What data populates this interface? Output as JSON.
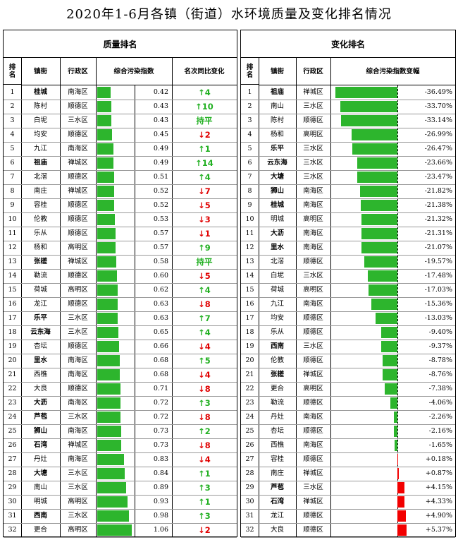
{
  "title": "2020年1-6月各镇（街道）水环境质量及变化排名情况",
  "colors": {
    "bar_green": "#2db52d",
    "bar_red": "#f20000",
    "up_text": "#22b022",
    "down_text": "#e00000"
  },
  "left": {
    "section_title": "质量排名",
    "headers": [
      "排名",
      "镇街",
      "行政区",
      "综合污染指数",
      "名次同比变化"
    ],
    "rows": [
      {
        "rank": "1",
        "town": "桂城",
        "bold": true,
        "district": "南海区",
        "index": 0.42,
        "index_text": "0.42",
        "change_text": "↑4",
        "dir": "up"
      },
      {
        "rank": "2",
        "town": "陈村",
        "bold": false,
        "district": "顺德区",
        "index": 0.43,
        "index_text": "0.43",
        "change_text": "↑10",
        "dir": "up"
      },
      {
        "rank": "3",
        "town": "白坭",
        "bold": false,
        "district": "三水区",
        "index": 0.43,
        "index_text": "0.43",
        "change_text": "持平",
        "dir": "flat"
      },
      {
        "rank": "4",
        "town": "均安",
        "bold": false,
        "district": "顺德区",
        "index": 0.45,
        "index_text": "0.45",
        "change_text": "↓2",
        "dir": "down"
      },
      {
        "rank": "5",
        "town": "九江",
        "bold": false,
        "district": "南海区",
        "index": 0.49,
        "index_text": "0.49",
        "change_text": "↑1",
        "dir": "up"
      },
      {
        "rank": "6",
        "town": "祖庙",
        "bold": true,
        "district": "禅城区",
        "index": 0.49,
        "index_text": "0.49",
        "change_text": "↑14",
        "dir": "up"
      },
      {
        "rank": "7",
        "town": "北滘",
        "bold": false,
        "district": "顺德区",
        "index": 0.51,
        "index_text": "0.51",
        "change_text": "↑4",
        "dir": "up"
      },
      {
        "rank": "8",
        "town": "南庄",
        "bold": false,
        "district": "禅城区",
        "index": 0.52,
        "index_text": "0.52",
        "change_text": "↓7",
        "dir": "down"
      },
      {
        "rank": "9",
        "town": "容桂",
        "bold": false,
        "district": "顺德区",
        "index": 0.52,
        "index_text": "0.52",
        "change_text": "↓5",
        "dir": "down"
      },
      {
        "rank": "10",
        "town": "伦教",
        "bold": false,
        "district": "顺德区",
        "index": 0.53,
        "index_text": "0.53",
        "change_text": "↓3",
        "dir": "down"
      },
      {
        "rank": "11",
        "town": "乐从",
        "bold": false,
        "district": "顺德区",
        "index": 0.57,
        "index_text": "0.57",
        "change_text": "↓1",
        "dir": "down"
      },
      {
        "rank": "12",
        "town": "杨和",
        "bold": false,
        "district": "高明区",
        "index": 0.57,
        "index_text": "0.57",
        "change_text": "↑9",
        "dir": "up"
      },
      {
        "rank": "13",
        "town": "张槎",
        "bold": true,
        "district": "禅城区",
        "index": 0.58,
        "index_text": "0.58",
        "change_text": "持平",
        "dir": "flat"
      },
      {
        "rank": "14",
        "town": "勒流",
        "bold": false,
        "district": "顺德区",
        "index": 0.6,
        "index_text": "0.60",
        "change_text": "↓5",
        "dir": "down"
      },
      {
        "rank": "15",
        "town": "荷城",
        "bold": false,
        "district": "高明区",
        "index": 0.62,
        "index_text": "0.62",
        "change_text": "↑4",
        "dir": "up"
      },
      {
        "rank": "16",
        "town": "龙江",
        "bold": false,
        "district": "顺德区",
        "index": 0.63,
        "index_text": "0.63",
        "change_text": "↓8",
        "dir": "down"
      },
      {
        "rank": "17",
        "town": "乐平",
        "bold": true,
        "district": "三水区",
        "index": 0.63,
        "index_text": "0.63",
        "change_text": "↑7",
        "dir": "up"
      },
      {
        "rank": "18",
        "town": "云东海",
        "bold": true,
        "district": "三水区",
        "index": 0.65,
        "index_text": "0.65",
        "change_text": "↑4",
        "dir": "up"
      },
      {
        "rank": "19",
        "town": "杏坛",
        "bold": false,
        "district": "顺德区",
        "index": 0.66,
        "index_text": "0.66",
        "change_text": "↓4",
        "dir": "down"
      },
      {
        "rank": "20",
        "town": "里水",
        "bold": true,
        "district": "南海区",
        "index": 0.68,
        "index_text": "0.68",
        "change_text": "↑5",
        "dir": "up"
      },
      {
        "rank": "21",
        "town": "西樵",
        "bold": false,
        "district": "南海区",
        "index": 0.68,
        "index_text": "0.68",
        "change_text": "↓4",
        "dir": "down"
      },
      {
        "rank": "22",
        "town": "大良",
        "bold": false,
        "district": "顺德区",
        "index": 0.71,
        "index_text": "0.71",
        "change_text": "↓8",
        "dir": "down"
      },
      {
        "rank": "23",
        "town": "大沥",
        "bold": true,
        "district": "南海区",
        "index": 0.72,
        "index_text": "0.72",
        "change_text": "↑3",
        "dir": "up"
      },
      {
        "rank": "24",
        "town": "芦苞",
        "bold": true,
        "district": "三水区",
        "index": 0.72,
        "index_text": "0.72",
        "change_text": "↓8",
        "dir": "down"
      },
      {
        "rank": "25",
        "town": "狮山",
        "bold": true,
        "district": "南海区",
        "index": 0.73,
        "index_text": "0.73",
        "change_text": "↑2",
        "dir": "up"
      },
      {
        "rank": "26",
        "town": "石湾",
        "bold": true,
        "district": "禅城区",
        "index": 0.73,
        "index_text": "0.73",
        "change_text": "↓8",
        "dir": "down"
      },
      {
        "rank": "27",
        "town": "丹灶",
        "bold": false,
        "district": "南海区",
        "index": 0.83,
        "index_text": "0.83",
        "change_text": "↓4",
        "dir": "down"
      },
      {
        "rank": "28",
        "town": "大塘",
        "bold": true,
        "district": "三水区",
        "index": 0.84,
        "index_text": "0.84",
        "change_text": "↑1",
        "dir": "up"
      },
      {
        "rank": "29",
        "town": "南山",
        "bold": false,
        "district": "三水区",
        "index": 0.89,
        "index_text": "0.89",
        "change_text": "↑3",
        "dir": "up"
      },
      {
        "rank": "30",
        "town": "明城",
        "bold": false,
        "district": "高明区",
        "index": 0.93,
        "index_text": "0.93",
        "change_text": "↑1",
        "dir": "up"
      },
      {
        "rank": "31",
        "town": "西南",
        "bold": true,
        "district": "三水区",
        "index": 0.98,
        "index_text": "0.98",
        "change_text": "↑3",
        "dir": "up"
      },
      {
        "rank": "32",
        "town": "更合",
        "bold": false,
        "district": "高明区",
        "index": 1.06,
        "index_text": "1.06",
        "change_text": "↓2",
        "dir": "down"
      }
    ]
  },
  "right": {
    "section_title": "变化排名",
    "headers": [
      "排名",
      "镇街",
      "行政区",
      "综合污染指数变幅"
    ],
    "rows": [
      {
        "rank": "1",
        "town": "祖庙",
        "bold": true,
        "district": "禅城区",
        "change": -36.49,
        "change_text": "-36.49%"
      },
      {
        "rank": "2",
        "town": "南山",
        "bold": false,
        "district": "三水区",
        "change": -33.7,
        "change_text": "-33.70%"
      },
      {
        "rank": "3",
        "town": "陈村",
        "bold": false,
        "district": "顺德区",
        "change": -33.14,
        "change_text": "-33.14%"
      },
      {
        "rank": "4",
        "town": "杨和",
        "bold": false,
        "district": "高明区",
        "change": -26.99,
        "change_text": "-26.99%"
      },
      {
        "rank": "5",
        "town": "乐平",
        "bold": true,
        "district": "三水区",
        "change": -26.47,
        "change_text": "-26.47%"
      },
      {
        "rank": "6",
        "town": "云东海",
        "bold": true,
        "district": "三水区",
        "change": -23.66,
        "change_text": "-23.66%"
      },
      {
        "rank": "7",
        "town": "大塘",
        "bold": true,
        "district": "三水区",
        "change": -23.47,
        "change_text": "-23.47%"
      },
      {
        "rank": "8",
        "town": "狮山",
        "bold": true,
        "district": "南海区",
        "change": -21.82,
        "change_text": "-21.82%"
      },
      {
        "rank": "9",
        "town": "桂城",
        "bold": true,
        "district": "南海区",
        "change": -21.38,
        "change_text": "-21.38%"
      },
      {
        "rank": "10",
        "town": "明城",
        "bold": false,
        "district": "高明区",
        "change": -21.32,
        "change_text": "-21.32%"
      },
      {
        "rank": "11",
        "town": "大沥",
        "bold": true,
        "district": "南海区",
        "change": -21.31,
        "change_text": "-21.31%"
      },
      {
        "rank": "12",
        "town": "里水",
        "bold": true,
        "district": "南海区",
        "change": -21.07,
        "change_text": "-21.07%"
      },
      {
        "rank": "13",
        "town": "北滘",
        "bold": false,
        "district": "顺德区",
        "change": -19.57,
        "change_text": "-19.57%"
      },
      {
        "rank": "14",
        "town": "白坭",
        "bold": false,
        "district": "三水区",
        "change": -17.48,
        "change_text": "-17.48%"
      },
      {
        "rank": "15",
        "town": "荷城",
        "bold": false,
        "district": "高明区",
        "change": -17.03,
        "change_text": "-17.03%"
      },
      {
        "rank": "16",
        "town": "九江",
        "bold": false,
        "district": "南海区",
        "change": -15.36,
        "change_text": "-15.36%"
      },
      {
        "rank": "17",
        "town": "均安",
        "bold": false,
        "district": "顺德区",
        "change": -13.03,
        "change_text": "-13.03%"
      },
      {
        "rank": "18",
        "town": "乐从",
        "bold": false,
        "district": "顺德区",
        "change": -9.4,
        "change_text": "-9.40%"
      },
      {
        "rank": "19",
        "town": "西南",
        "bold": true,
        "district": "三水区",
        "change": -9.37,
        "change_text": "-9.37%"
      },
      {
        "rank": "20",
        "town": "伦教",
        "bold": false,
        "district": "顺德区",
        "change": -8.78,
        "change_text": "-8.78%"
      },
      {
        "rank": "21",
        "town": "张槎",
        "bold": true,
        "district": "禅城区",
        "change": -8.76,
        "change_text": "-8.76%"
      },
      {
        "rank": "22",
        "town": "更合",
        "bold": false,
        "district": "高明区",
        "change": -7.38,
        "change_text": "-7.38%"
      },
      {
        "rank": "23",
        "town": "勒流",
        "bold": false,
        "district": "顺德区",
        "change": -4.06,
        "change_text": "-4.06%"
      },
      {
        "rank": "24",
        "town": "丹灶",
        "bold": false,
        "district": "南海区",
        "change": -2.26,
        "change_text": "-2.26%"
      },
      {
        "rank": "25",
        "town": "杏坛",
        "bold": false,
        "district": "顺德区",
        "change": -2.16,
        "change_text": "-2.16%"
      },
      {
        "rank": "26",
        "town": "西樵",
        "bold": false,
        "district": "南海区",
        "change": -1.65,
        "change_text": "-1.65%"
      },
      {
        "rank": "27",
        "town": "容桂",
        "bold": false,
        "district": "顺德区",
        "change": 0.18,
        "change_text": "+0.18%"
      },
      {
        "rank": "28",
        "town": "南庄",
        "bold": false,
        "district": "禅城区",
        "change": 0.87,
        "change_text": "+0.87%"
      },
      {
        "rank": "29",
        "town": "芦苞",
        "bold": true,
        "district": "三水区",
        "change": 4.15,
        "change_text": "+4.15%"
      },
      {
        "rank": "30",
        "town": "石湾",
        "bold": true,
        "district": "禅城区",
        "change": 4.33,
        "change_text": "+4.33%"
      },
      {
        "rank": "31",
        "town": "龙江",
        "bold": false,
        "district": "顺德区",
        "change": 4.9,
        "change_text": "+4.90%"
      },
      {
        "rank": "32",
        "town": "大良",
        "bold": false,
        "district": "顺德区",
        "change": 5.37,
        "change_text": "+5.37%"
      }
    ]
  },
  "chart_data": [
    {
      "type": "table",
      "title": "质量排名",
      "series": [
        {
          "name": "综合污染指数",
          "values": [
            0.42,
            0.43,
            0.43,
            0.45,
            0.49,
            0.49,
            0.51,
            0.52,
            0.52,
            0.53,
            0.57,
            0.57,
            0.58,
            0.6,
            0.62,
            0.63,
            0.63,
            0.65,
            0.66,
            0.68,
            0.68,
            0.71,
            0.72,
            0.72,
            0.73,
            0.73,
            0.83,
            0.84,
            0.89,
            0.93,
            0.98,
            1.06
          ]
        }
      ],
      "categories": [
        "桂城",
        "陈村",
        "白坭",
        "均安",
        "九江",
        "祖庙",
        "北滘",
        "南庄",
        "容桂",
        "伦教",
        "乐从",
        "杨和",
        "张槎",
        "勒流",
        "荷城",
        "龙江",
        "乐平",
        "云东海",
        "杏坛",
        "里水",
        "西樵",
        "大良",
        "大沥",
        "芦苞",
        "狮山",
        "石湾",
        "丹灶",
        "大塘",
        "南山",
        "明城",
        "西南",
        "更合"
      ]
    },
    {
      "type": "table",
      "title": "变化排名",
      "series": [
        {
          "name": "综合污染指数变幅",
          "values": [
            -36.49,
            -33.7,
            -33.14,
            -26.99,
            -26.47,
            -23.66,
            -23.47,
            -21.82,
            -21.38,
            -21.32,
            -21.31,
            -21.07,
            -19.57,
            -17.48,
            -17.03,
            -15.36,
            -13.03,
            -9.4,
            -9.37,
            -8.78,
            -8.76,
            -7.38,
            -4.06,
            -2.26,
            -2.16,
            -1.65,
            0.18,
            0.87,
            4.15,
            4.33,
            4.9,
            5.37
          ]
        }
      ],
      "categories": [
        "祖庙",
        "南山",
        "陈村",
        "杨和",
        "乐平",
        "云东海",
        "大塘",
        "狮山",
        "桂城",
        "明城",
        "大沥",
        "里水",
        "北滘",
        "白坭",
        "荷城",
        "九江",
        "均安",
        "乐从",
        "西南",
        "伦教",
        "张槎",
        "更合",
        "勒流",
        "丹灶",
        "杏坛",
        "西樵",
        "容桂",
        "南庄",
        "芦苞",
        "石湾",
        "龙江",
        "大良"
      ]
    }
  ]
}
